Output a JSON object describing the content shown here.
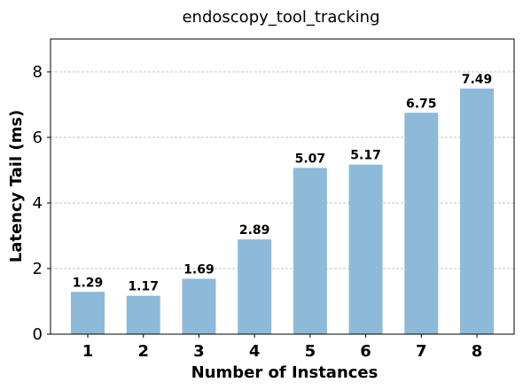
{
  "chart_data": {
    "type": "bar",
    "title": "endoscopy_tool_tracking",
    "xlabel": "Number of Instances",
    "ylabel": "Latency Tail (ms)",
    "categories": [
      "1",
      "2",
      "3",
      "4",
      "5",
      "6",
      "7",
      "8"
    ],
    "values": [
      1.29,
      1.17,
      1.69,
      2.89,
      5.07,
      5.17,
      6.75,
      7.49
    ],
    "value_labels": [
      "1.29",
      "1.17",
      "1.69",
      "2.89",
      "5.07",
      "5.17",
      "6.75",
      "7.49"
    ],
    "ylim": [
      0,
      9
    ],
    "yticks": [
      0,
      2,
      4,
      6,
      8
    ],
    "ytick_labels": [
      "0",
      "2",
      "4",
      "6",
      "8"
    ],
    "bar_color": "#8dbad9",
    "grid": "y-dashed"
  }
}
